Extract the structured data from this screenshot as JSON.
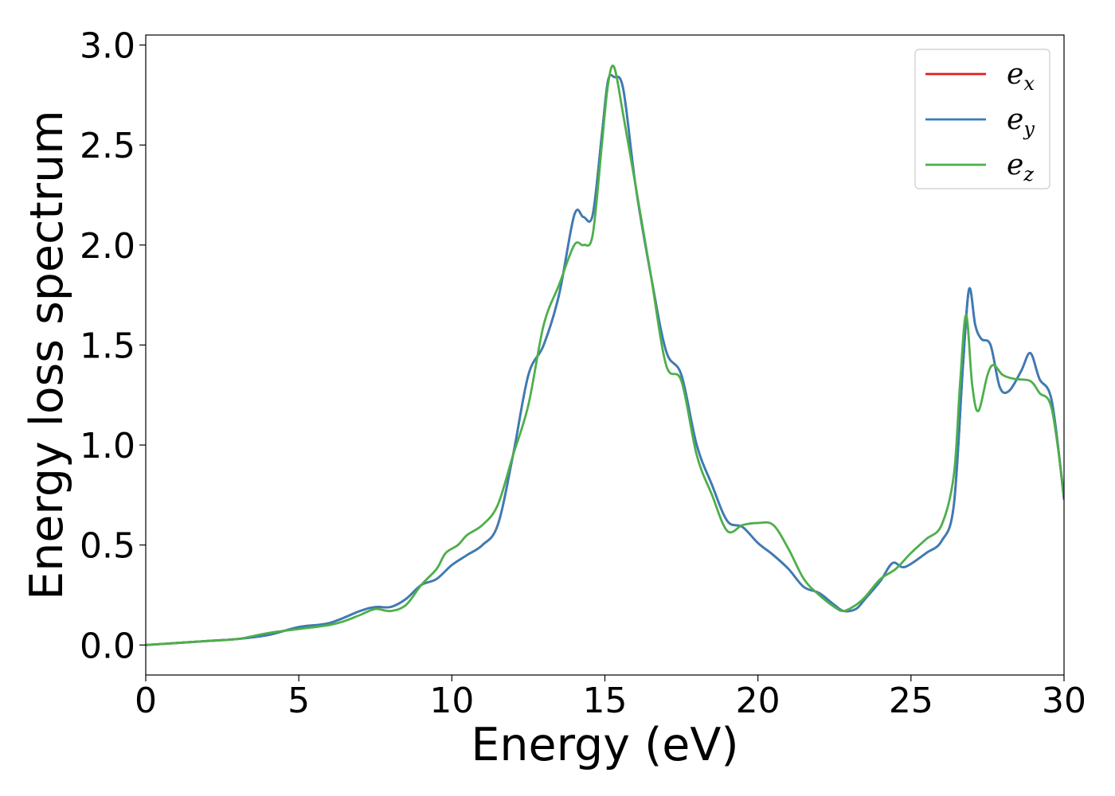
{
  "chart_data": {
    "type": "line",
    "title": "",
    "xlabel": "Energy (eV)",
    "ylabel": "Energy loss spectrum",
    "xlim": [
      0,
      30
    ],
    "ylim": [
      -0.15,
      3.05
    ],
    "xticks": [
      "0",
      "5",
      "10",
      "15",
      "20",
      "25",
      "30"
    ],
    "yticks": [
      "0.0",
      "0.5",
      "1.0",
      "1.5",
      "2.0",
      "2.5",
      "3.0"
    ],
    "grid": false,
    "legend_position": "top-right",
    "legend": [
      {
        "base": "e",
        "sub": "x",
        "color": "#e41a1c"
      },
      {
        "base": "e",
        "sub": "y",
        "color": "#377eb8"
      },
      {
        "base": "e",
        "sub": "z",
        "color": "#4daf4a"
      }
    ],
    "series": [
      {
        "name": "e_x",
        "color": "#e41a1c",
        "x": [
          0,
          1,
          2,
          3,
          4,
          5,
          6,
          7,
          7.5,
          8,
          8.5,
          9,
          9.5,
          10,
          10.5,
          11,
          11.5,
          12,
          12.5,
          13,
          13.5,
          14,
          14.3,
          14.6,
          14.9,
          15.1,
          15.3,
          15.6,
          16,
          16.5,
          17,
          17.5,
          18,
          18.5,
          19,
          19.5,
          20,
          20.5,
          21,
          21.5,
          22,
          22.5,
          22.8,
          23.2,
          23.5,
          24,
          24.4,
          24.8,
          25.5,
          26,
          26.4,
          26.7,
          26.9,
          27.1,
          27.3,
          27.6,
          27.9,
          28.2,
          28.6,
          28.9,
          29.2,
          29.6,
          30
        ],
        "y": [
          0,
          0.01,
          0.02,
          0.03,
          0.05,
          0.09,
          0.11,
          0.17,
          0.19,
          0.19,
          0.23,
          0.3,
          0.33,
          0.4,
          0.45,
          0.5,
          0.6,
          0.95,
          1.35,
          1.5,
          1.75,
          2.15,
          2.14,
          2.15,
          2.55,
          2.82,
          2.84,
          2.78,
          2.3,
          1.85,
          1.47,
          1.35,
          1.0,
          0.8,
          0.62,
          0.59,
          0.51,
          0.45,
          0.38,
          0.29,
          0.26,
          0.2,
          0.17,
          0.18,
          0.23,
          0.32,
          0.41,
          0.39,
          0.46,
          0.52,
          0.7,
          1.4,
          1.78,
          1.6,
          1.53,
          1.5,
          1.29,
          1.27,
          1.37,
          1.46,
          1.33,
          1.22,
          0.73
        ]
      },
      {
        "name": "e_y",
        "color": "#377eb8",
        "x": [
          0,
          1,
          2,
          3,
          4,
          5,
          6,
          7,
          7.5,
          8,
          8.5,
          9,
          9.5,
          10,
          10.5,
          11,
          11.5,
          12,
          12.5,
          13,
          13.5,
          14,
          14.3,
          14.6,
          14.9,
          15.1,
          15.3,
          15.6,
          16,
          16.5,
          17,
          17.5,
          18,
          18.5,
          19,
          19.5,
          20,
          20.5,
          21,
          21.5,
          22,
          22.5,
          22.8,
          23.2,
          23.5,
          24,
          24.4,
          24.8,
          25.5,
          26,
          26.4,
          26.7,
          26.9,
          27.1,
          27.3,
          27.6,
          27.9,
          28.2,
          28.6,
          28.9,
          29.2,
          29.6,
          30
        ],
        "y": [
          0,
          0.01,
          0.02,
          0.03,
          0.05,
          0.09,
          0.11,
          0.17,
          0.19,
          0.19,
          0.23,
          0.3,
          0.33,
          0.4,
          0.45,
          0.5,
          0.6,
          0.95,
          1.35,
          1.5,
          1.75,
          2.15,
          2.14,
          2.15,
          2.55,
          2.82,
          2.84,
          2.78,
          2.3,
          1.85,
          1.47,
          1.35,
          1.0,
          0.8,
          0.62,
          0.59,
          0.51,
          0.45,
          0.38,
          0.29,
          0.26,
          0.2,
          0.17,
          0.18,
          0.23,
          0.32,
          0.41,
          0.39,
          0.46,
          0.52,
          0.7,
          1.4,
          1.78,
          1.6,
          1.53,
          1.5,
          1.29,
          1.27,
          1.37,
          1.46,
          1.33,
          1.22,
          0.73
        ]
      },
      {
        "name": "e_z",
        "color": "#4daf4a",
        "x": [
          0,
          1,
          2,
          3,
          4,
          5,
          6,
          6.5,
          7,
          7.5,
          8,
          8.5,
          9,
          9.5,
          9.8,
          10.2,
          10.5,
          11,
          11.5,
          12,
          12.5,
          13,
          13.5,
          14,
          14.3,
          14.6,
          14.9,
          15.1,
          15.3,
          15.6,
          16,
          16.5,
          17,
          17.5,
          18,
          18.5,
          19,
          19.5,
          20,
          20.5,
          21,
          21.5,
          22,
          22.5,
          22.8,
          23.2,
          23.5,
          24,
          24.5,
          25,
          25.5,
          26,
          26.4,
          26.6,
          26.8,
          27,
          27.2,
          27.5,
          27.7,
          28,
          28.4,
          28.9,
          29.2,
          29.6,
          30
        ],
        "y": [
          0,
          0.01,
          0.02,
          0.03,
          0.06,
          0.08,
          0.1,
          0.12,
          0.15,
          0.18,
          0.17,
          0.2,
          0.3,
          0.38,
          0.46,
          0.5,
          0.55,
          0.6,
          0.7,
          0.95,
          1.2,
          1.6,
          1.8,
          2.0,
          2.0,
          2.05,
          2.5,
          2.8,
          2.89,
          2.65,
          2.3,
          1.85,
          1.4,
          1.32,
          0.95,
          0.75,
          0.57,
          0.6,
          0.61,
          0.6,
          0.48,
          0.33,
          0.25,
          0.19,
          0.17,
          0.2,
          0.24,
          0.33,
          0.38,
          0.46,
          0.53,
          0.6,
          0.85,
          1.3,
          1.65,
          1.3,
          1.17,
          1.35,
          1.4,
          1.35,
          1.33,
          1.32,
          1.26,
          1.18,
          0.75
        ]
      }
    ]
  }
}
